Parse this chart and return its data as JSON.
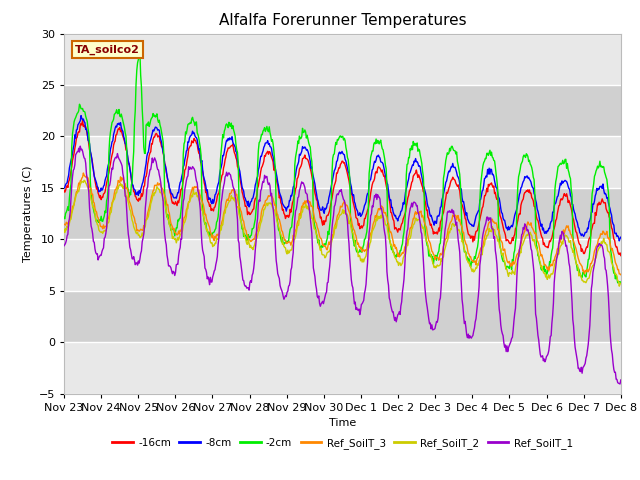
{
  "title": "Alfalfa Forerunner Temperatures",
  "xlabel": "Time",
  "ylabel": "Temperatures (C)",
  "ylim": [
    -5,
    30
  ],
  "tick_labels": [
    "Nov 23",
    "Nov 24",
    "Nov 25",
    "Nov 26",
    "Nov 27",
    "Nov 28",
    "Nov 29",
    "Nov 30",
    "Dec 1",
    "Dec 2",
    "Dec 3",
    "Dec 4",
    "Dec 5",
    "Dec 6",
    "Dec 7",
    "Dec 8"
  ],
  "annotation_text": "TA_soilco2",
  "annotation_color": "#880000",
  "annotation_bg": "#ffffcc",
  "annotation_border": "#cc6600",
  "fig_bg": "#ffffff",
  "plot_bg": "#ffffff",
  "band_light": "#e8e8e8",
  "band_dark": "#d0d0d0",
  "grid_color": "#ffffff",
  "line_colors": [
    "#ff0000",
    "#0000ff",
    "#00ee00",
    "#ff8800",
    "#cccc00",
    "#9900cc"
  ],
  "legend_labels": [
    "-16cm",
    "-8cm",
    "-2cm",
    "Ref_SoilT_3",
    "Ref_SoilT_2",
    "Ref_SoilT_1"
  ],
  "title_fontsize": 11,
  "lw": 1.0
}
